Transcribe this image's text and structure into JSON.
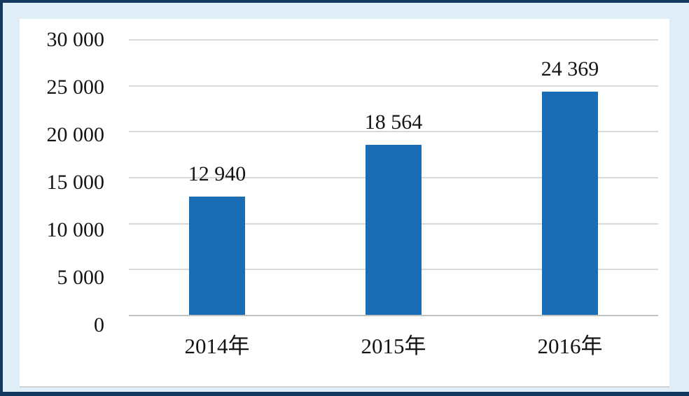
{
  "frame": {
    "border_color": "#14395e",
    "page_bg": "#e0eef8",
    "panel_bg": "#ffffff",
    "panel_bottom_edge_color": "#d2d2d2"
  },
  "chart_data": {
    "type": "bar",
    "title": "",
    "xlabel": "",
    "ylabel": "",
    "categories": [
      "2014年",
      "2015年",
      "2016年"
    ],
    "values": [
      12940,
      18564,
      24369
    ],
    "value_labels": [
      "12 940",
      "18 564",
      "24 369"
    ],
    "ylim": [
      0,
      30000
    ],
    "y_ticks": [
      {
        "value": 0,
        "label": "0"
      },
      {
        "value": 5000,
        "label": "5 000"
      },
      {
        "value": 10000,
        "label": "10 000"
      },
      {
        "value": 15000,
        "label": "15 000"
      },
      {
        "value": 20000,
        "label": "20 000"
      },
      {
        "value": 25000,
        "label": "25 000"
      },
      {
        "value": 30000,
        "label": "30 000"
      }
    ],
    "grid": "horizontal",
    "legend_position": "none",
    "bar_color": "#196db5",
    "gridline_color": "#d9d9d9",
    "axis_line_color": "#c2c2c2",
    "text_color": "#141414"
  }
}
